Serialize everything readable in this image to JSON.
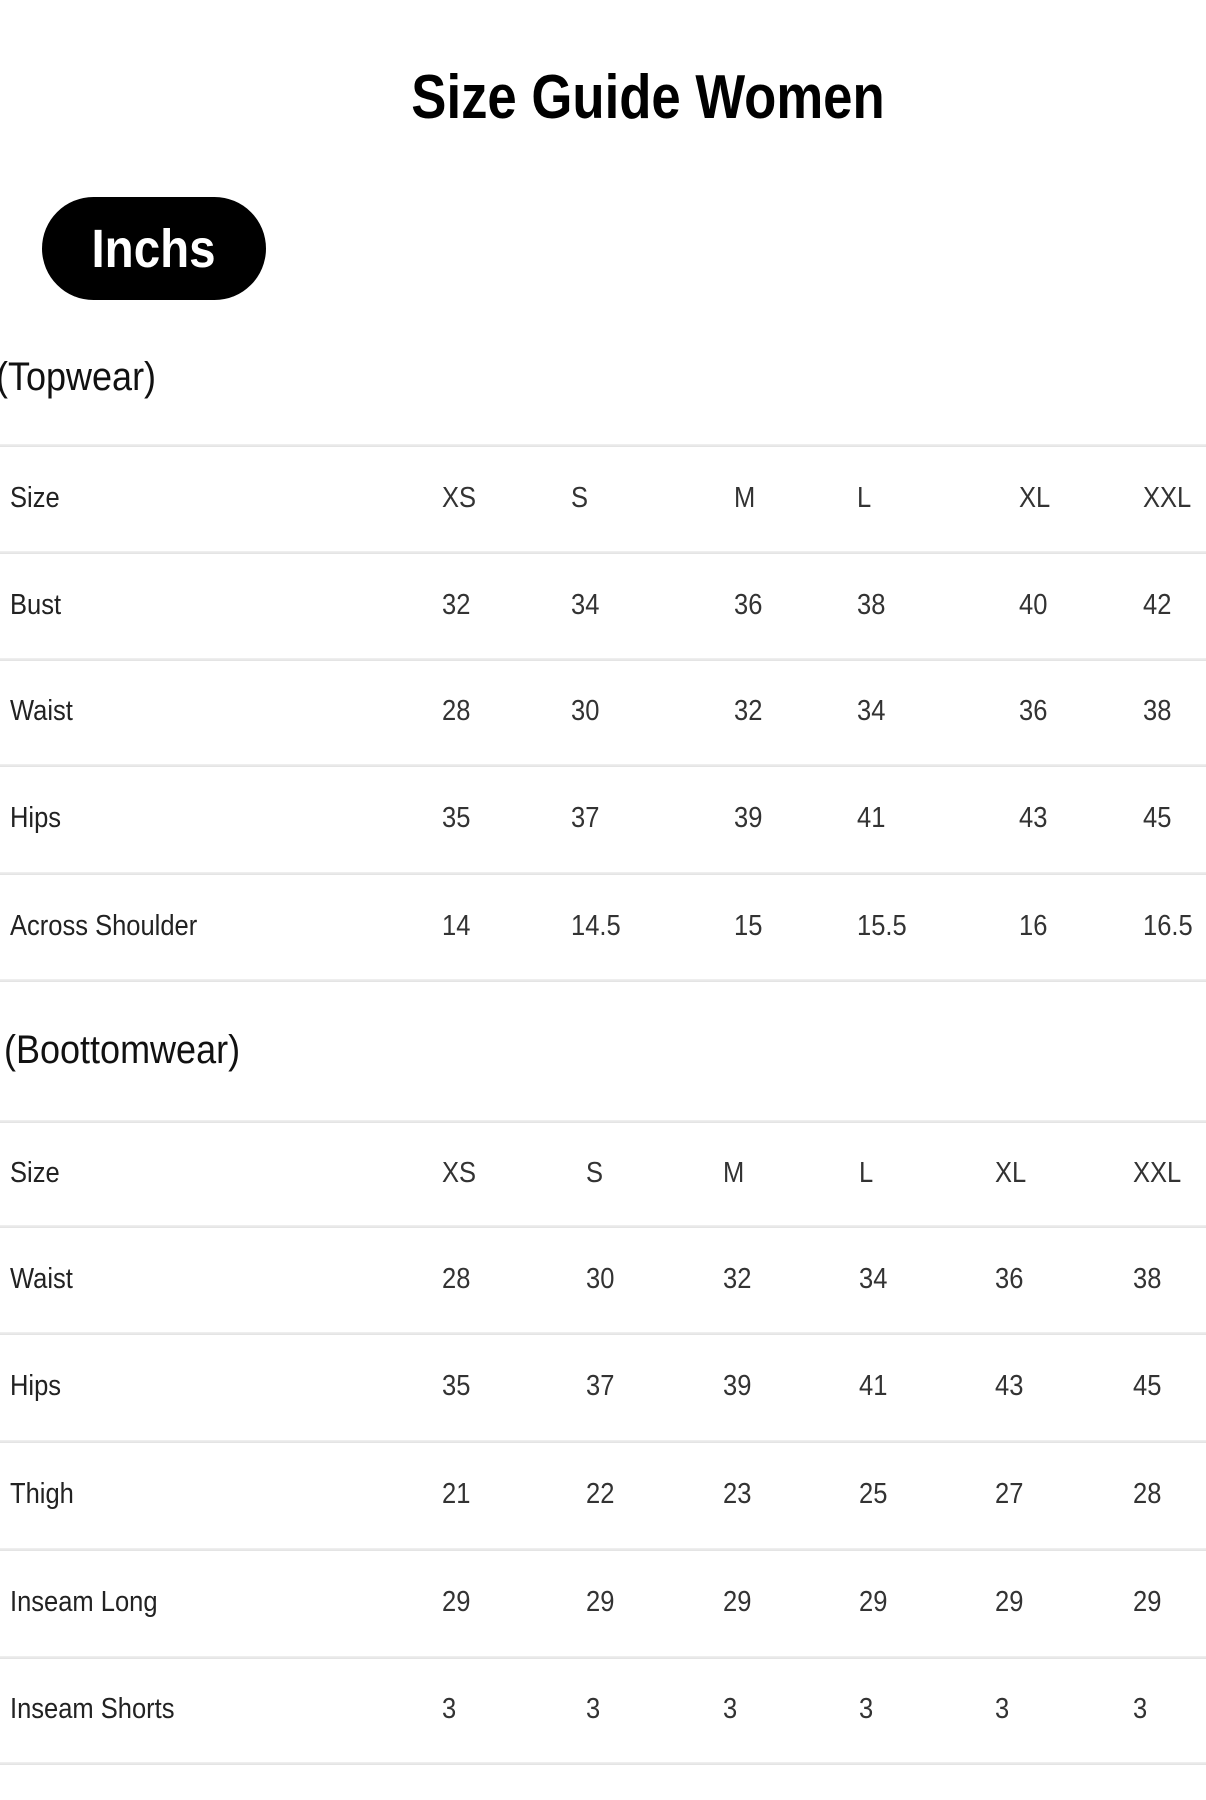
{
  "title": "Size Guide Women",
  "unit_badge": "Inchs",
  "tables": [
    {
      "heading": "(Topwear)",
      "header": [
        "Size",
        "XS",
        "S",
        "M",
        "L",
        "XL",
        "XXL"
      ],
      "rows": [
        [
          "Bust",
          "32",
          "34",
          "36",
          "38",
          "40",
          "42"
        ],
        [
          "Waist",
          "28",
          "30",
          "32",
          "34",
          "36",
          "38"
        ],
        [
          "Hips",
          "35",
          "37",
          "39",
          "41",
          "43",
          "45"
        ],
        [
          "Across Shoulder",
          "14",
          "14.5",
          "15",
          "15.5",
          "16",
          "16.5"
        ]
      ]
    },
    {
      "heading": "(Boottomwear)",
      "header": [
        "Size",
        "XS",
        "S",
        "M",
        "L",
        "XL",
        "XXL"
      ],
      "rows": [
        [
          "Waist",
          "28",
          "30",
          "32",
          "34",
          "36",
          "38"
        ],
        [
          "Hips",
          "35",
          "37",
          "39",
          "41",
          "43",
          "45"
        ],
        [
          "Thigh",
          "21",
          "22",
          "23",
          "25",
          "27",
          "28"
        ],
        [
          "Inseam Long",
          "29",
          "29",
          "29",
          "29",
          "29",
          "29"
        ],
        [
          "Inseam Shorts",
          "3",
          "3",
          "3",
          "3",
          "3",
          "3"
        ]
      ]
    }
  ]
}
